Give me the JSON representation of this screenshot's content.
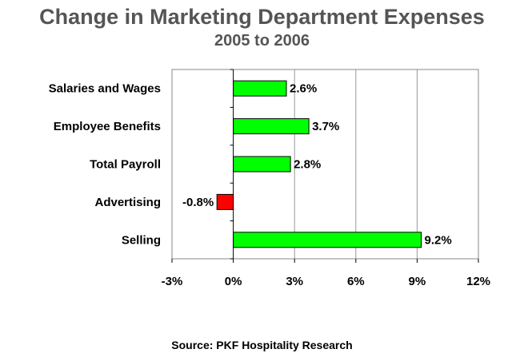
{
  "header": {
    "title": "Change in Marketing Department Expenses",
    "subtitle": "2005 to 2006"
  },
  "footer": {
    "source": "Source: PKF Hospitality Research"
  },
  "colors": {
    "positive": "#00ff00",
    "negative": "#ff0000",
    "grid": "#999999",
    "title": "#555555"
  },
  "chart_data": {
    "type": "bar",
    "orientation": "horizontal",
    "title": "Change in Marketing Department Expenses",
    "subtitle": "2005 to 2006",
    "categories": [
      "Salaries and Wages",
      "Employee Benefits",
      "Total Payroll",
      "Advertising",
      "Selling"
    ],
    "values": [
      2.6,
      3.7,
      2.8,
      -0.8,
      9.2
    ],
    "value_labels": [
      "2.6%",
      "3.7%",
      "2.8%",
      "-0.8%",
      "9.2%"
    ],
    "xlim": [
      -3,
      12
    ],
    "xticks": [
      -3,
      0,
      3,
      6,
      9,
      12
    ],
    "xtick_labels": [
      "-3%",
      "0%",
      "3%",
      "6%",
      "9%",
      "12%"
    ],
    "grid": true,
    "legend": "none"
  }
}
